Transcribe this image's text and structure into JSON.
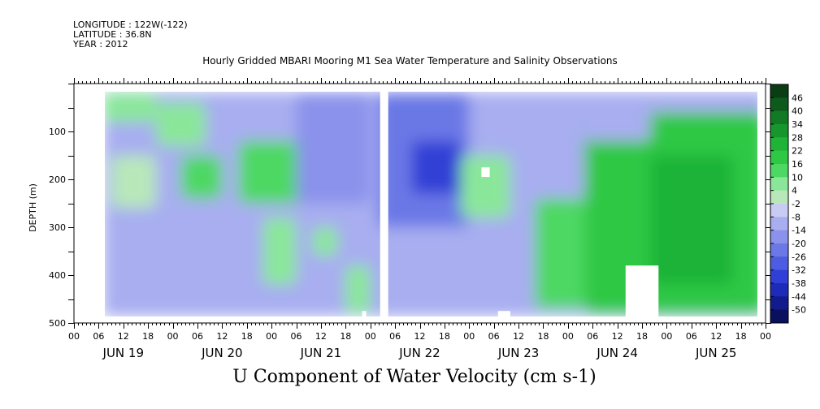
{
  "header": {
    "longitude": "LONGITUDE : 122W(-122)",
    "latitude": "LATITUDE : 36.8N",
    "year": "YEAR : 2012"
  },
  "chart_data": {
    "type": "heatmap",
    "title": "Hourly Gridded MBARI Mooring M1 Sea Water Temperature and Salinity Observations",
    "xlabel": "U Component of Water Velocity (cm s-1)",
    "ylabel": "DEPTH (m)",
    "ylim": [
      500,
      0
    ],
    "yticks": [
      100,
      200,
      300,
      400,
      500
    ],
    "x_hour_ticks": [
      "00",
      "06",
      "12",
      "18",
      "00",
      "06",
      "12",
      "18",
      "00",
      "06",
      "12",
      "18",
      "00",
      "06",
      "12",
      "18",
      "00",
      "06",
      "12",
      "18",
      "00",
      "06",
      "12",
      "18",
      "00",
      "06",
      "12",
      "18",
      "00"
    ],
    "dates": [
      "JUN 19",
      "JUN 20",
      "JUN 21",
      "JUN 22",
      "JUN 23",
      "JUN 24",
      "JUN 25"
    ],
    "colorbar_labels": [
      "46",
      "40",
      "34",
      "28",
      "22",
      "16",
      "10",
      "4",
      "-2",
      "-8",
      "-14",
      "-20",
      "-26",
      "-32",
      "-38",
      "-44",
      "-50"
    ],
    "colorbar_colors": [
      "#0a3d14",
      "#0d5a1c",
      "#127a25",
      "#18962e",
      "#1fb338",
      "#2ec845",
      "#4dd863",
      "#8ae79a",
      "#b8e8ba",
      "#c9ccf2",
      "#a8aef0",
      "#8a92eb",
      "#6b78e6",
      "#4d5ce0",
      "#3040d6",
      "#1d2bb8",
      "#111b8c",
      "#0a1060"
    ],
    "time_range_hours": [
      0,
      168
    ],
    "data_start_hour": 7,
    "gaps_hours": [
      [
        72,
        74
      ]
    ],
    "regions": [
      {
        "t0": 7,
        "t1": 20,
        "d0": 20,
        "d1": 80,
        "v": 8
      },
      {
        "t0": 7,
        "t1": 16,
        "d0": 300,
        "d1": 400,
        "v": -12
      },
      {
        "t0": 9,
        "t1": 20,
        "d0": 150,
        "d1": 260,
        "v": 4
      },
      {
        "t0": 20,
        "t1": 32,
        "d0": 40,
        "d1": 130,
        "v": 6
      },
      {
        "t0": 26,
        "t1": 36,
        "d0": 150,
        "d1": 240,
        "v": 12
      },
      {
        "t0": 32,
        "t1": 44,
        "d0": 260,
        "d1": 360,
        "v": -10
      },
      {
        "t0": 40,
        "t1": 56,
        "d0": 120,
        "d1": 250,
        "v": 16
      },
      {
        "t0": 46,
        "t1": 54,
        "d0": 280,
        "d1": 420,
        "v": 8
      },
      {
        "t0": 54,
        "t1": 72,
        "d0": 20,
        "d1": 250,
        "v": -16
      },
      {
        "t0": 58,
        "t1": 64,
        "d0": 300,
        "d1": 360,
        "v": 6
      },
      {
        "t0": 66,
        "t1": 72,
        "d0": 380,
        "d1": 480,
        "v": 6
      },
      {
        "t0": 74,
        "t1": 96,
        "d0": 20,
        "d1": 300,
        "v": -24
      },
      {
        "t0": 82,
        "t1": 94,
        "d0": 120,
        "d1": 230,
        "v": -32
      },
      {
        "t0": 94,
        "t1": 106,
        "d0": 150,
        "d1": 280,
        "v": 6
      },
      {
        "t0": 104,
        "t1": 118,
        "d0": 20,
        "d1": 100,
        "v": -12
      },
      {
        "t0": 112,
        "t1": 124,
        "d0": 240,
        "d1": 470,
        "v": 12
      },
      {
        "t0": 124,
        "t1": 168,
        "d0": 60,
        "d1": 480,
        "v": 18
      },
      {
        "t0": 140,
        "t1": 160,
        "d0": 150,
        "d1": 420,
        "v": 28
      },
      {
        "t0": 124,
        "t1": 140,
        "d0": 20,
        "d1": 120,
        "v": -8
      }
    ],
    "missing_blocks": [
      {
        "t0": 134,
        "t1": 142,
        "d0": 380,
        "d1": 500
      },
      {
        "t0": 99,
        "t1": 101,
        "d0": 175,
        "d1": 195
      },
      {
        "t0": 103,
        "t1": 106,
        "d0": 475,
        "d1": 500
      },
      {
        "t0": 70,
        "t1": 71,
        "d0": 475,
        "d1": 500
      }
    ]
  }
}
